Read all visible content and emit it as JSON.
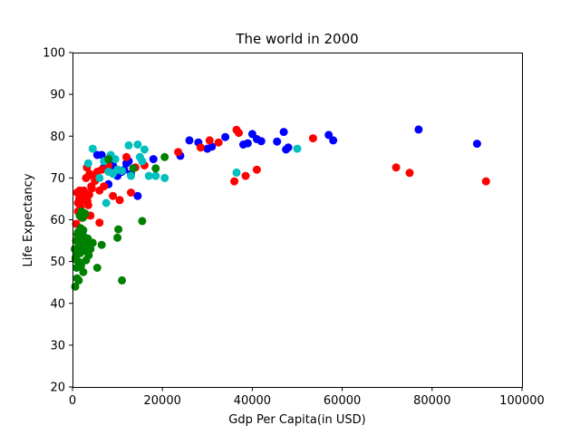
{
  "chart_data": {
    "type": "scatter",
    "title": "The world in 2000",
    "xlabel": "Gdp Per Capita(in USD)",
    "ylabel": "Life Expectancy",
    "xlim": [
      0,
      100000
    ],
    "ylim": [
      20,
      100
    ],
    "x_ticks": [
      0,
      20000,
      40000,
      60000,
      80000,
      100000
    ],
    "x_tick_labels": [
      "0",
      "20000",
      "40000",
      "60000",
      "80000",
      "100000"
    ],
    "y_ticks": [
      20,
      30,
      40,
      50,
      60,
      70,
      80,
      90,
      100
    ],
    "y_tick_labels": [
      "20",
      "30",
      "40",
      "50",
      "60",
      "70",
      "80",
      "90",
      "100"
    ],
    "grid": false,
    "series": [
      {
        "color": "#0000ff",
        "x": [
          5500,
          6500,
          7000,
          8000,
          9000,
          10000,
          11000,
          12000,
          13000,
          14500,
          18000,
          24000,
          26000,
          28000,
          30000,
          31000,
          34000,
          38000,
          39000,
          40000,
          41000,
          42000,
          45500,
          47000,
          47500,
          48000,
          57000,
          58000,
          77000,
          90000,
          11500,
          12500
        ],
        "y": [
          75.5,
          75.5,
          72.5,
          68.5,
          73,
          70.5,
          71.5,
          73.5,
          71,
          65.7,
          74.5,
          75.3,
          79,
          78.5,
          77,
          77.5,
          79.8,
          78,
          78.3,
          80.5,
          79.3,
          78.8,
          78.7,
          81,
          76.8,
          77.3,
          80.3,
          79,
          81.6,
          78.2,
          72,
          74
        ]
      },
      {
        "color": "#ff0000",
        "x": [
          800,
          1000,
          1200,
          1500,
          1800,
          2000,
          2200,
          2500,
          2800,
          3000,
          3200,
          3500,
          3800,
          4000,
          4200,
          4500,
          5000,
          5500,
          6000,
          6500,
          7000,
          8000,
          9000,
          10000,
          10500,
          12000,
          13000,
          14000,
          16000,
          23500,
          28500,
          30500,
          32500,
          36000,
          36500,
          37000,
          38500,
          41000,
          53500,
          72000,
          75000,
          92000,
          1200,
          1600,
          2300,
          2700,
          3300,
          3700,
          4300,
          6000
        ],
        "y": [
          59,
          66.5,
          62,
          65,
          63,
          60.5,
          64.5,
          67,
          61,
          70,
          72.5,
          63.5,
          71,
          61,
          68,
          70.5,
          69.3,
          71.5,
          59.3,
          72,
          68,
          73,
          65.7,
          72,
          64.7,
          75,
          66.5,
          72.5,
          73,
          76.2,
          77.3,
          79,
          78.5,
          69.2,
          81.5,
          80.8,
          70.5,
          72,
          79.5,
          72.5,
          71.2,
          69.2,
          64,
          67,
          65.5,
          66.5,
          64.5,
          66,
          67.5,
          67
        ]
      },
      {
        "color": "#00bfbf",
        "x": [
          3500,
          4500,
          6000,
          7000,
          7500,
          8000,
          8500,
          9000,
          9500,
          10000,
          11000,
          12500,
          13000,
          14500,
          15000,
          15500,
          16000,
          17000,
          18500,
          20500,
          36500,
          50000
        ],
        "y": [
          73.5,
          77,
          70,
          74,
          64,
          71.5,
          75.5,
          71,
          74.5,
          72,
          71.7,
          77.8,
          70.5,
          78,
          75,
          74,
          76.8,
          70.5,
          70.5,
          70,
          71.3,
          77
        ]
      },
      {
        "color": "#008000",
        "x": [
          500,
          600,
          700,
          800,
          900,
          1000,
          1100,
          1200,
          1300,
          1400,
          1500,
          1600,
          1700,
          1800,
          1900,
          2000,
          2100,
          2200,
          2300,
          2400,
          2500,
          2600,
          2800,
          3000,
          3300,
          3600,
          4000,
          4500,
          5500,
          6500,
          8000,
          10000,
          10200,
          11000,
          13500,
          15500,
          18500,
          20500,
          700,
          900,
          1100,
          1500,
          1700,
          2000,
          2400,
          2900,
          3400
        ],
        "y": [
          53,
          44,
          50.5,
          55,
          48.5,
          46,
          52,
          57,
          50,
          45.5,
          53.5,
          61,
          54.5,
          58,
          49,
          62,
          55,
          52.5,
          60.5,
          47.5,
          56,
          53,
          61.5,
          50.3,
          54.5,
          51.5,
          53,
          54.5,
          48.5,
          54,
          74.5,
          55.7,
          57.7,
          45.5,
          72.3,
          59.7,
          72.3,
          75,
          51,
          52.5,
          56.5,
          49,
          52,
          55,
          57.5,
          53,
          55.5
        ]
      }
    ]
  }
}
